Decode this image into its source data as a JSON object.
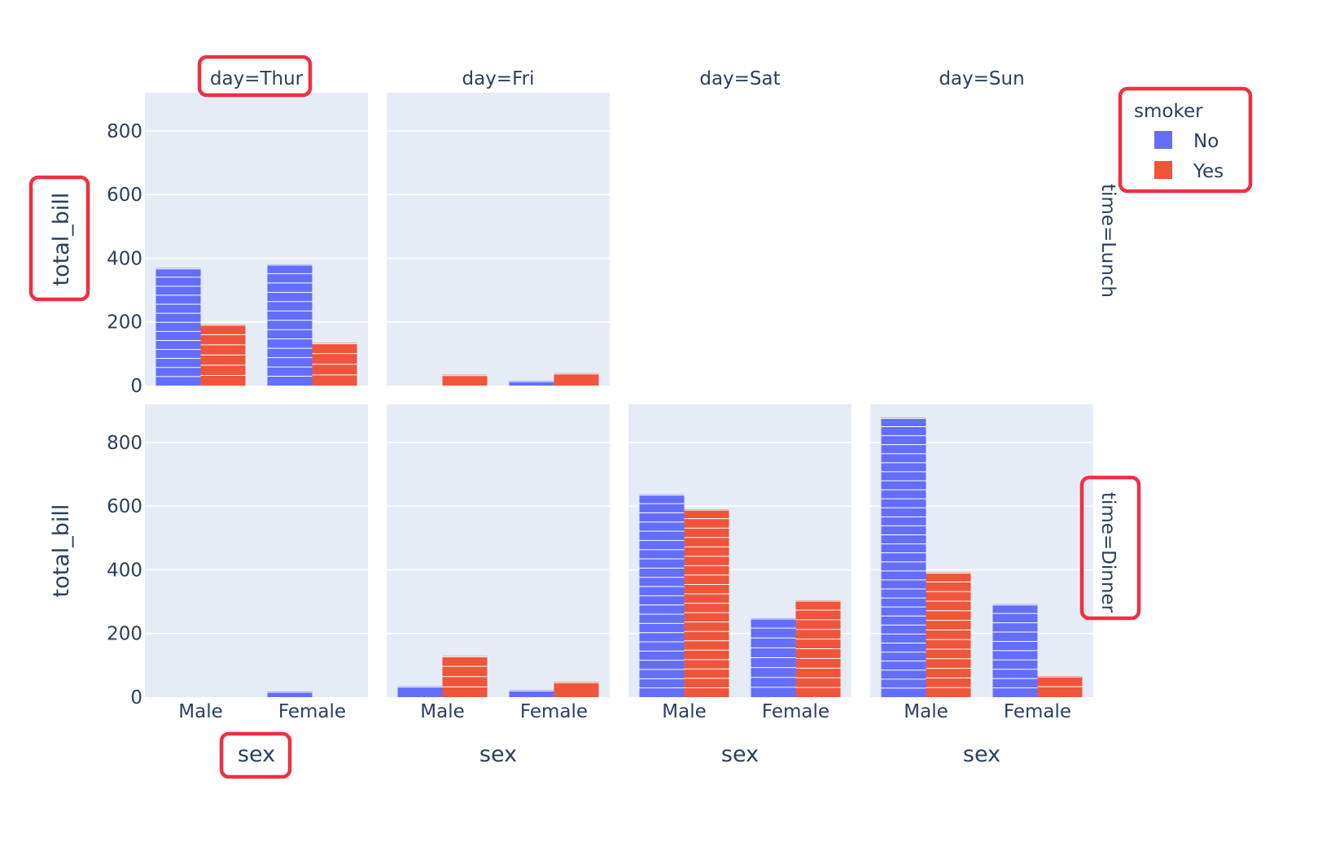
{
  "chart_data": {
    "type": "bar",
    "barmode": "group",
    "facet_col": {
      "name": "day",
      "labels": [
        "day=Thur",
        "day=Fri",
        "day=Sat",
        "day=Sun"
      ]
    },
    "facet_row": {
      "name": "time",
      "labels": [
        "time=Lunch",
        "time=Dinner"
      ]
    },
    "categories": [
      "Male",
      "Female"
    ],
    "xlabel": "sex",
    "ylabel": "total_bill",
    "ylim": [
      0,
      920
    ],
    "yticks": [
      0,
      200,
      400,
      600,
      800
    ],
    "grid": true,
    "legend": {
      "title": "smoker",
      "placement": "top-right",
      "items": [
        {
          "name": "No",
          "color": "#636efa"
        },
        {
          "name": "Yes",
          "color": "#ef553b"
        }
      ]
    },
    "series": [
      {
        "name": "No",
        "color": "#636efa"
      },
      {
        "name": "Yes",
        "color": "#ef553b"
      }
    ],
    "panels": [
      {
        "row": 0,
        "col": 0,
        "has_data": true,
        "values": {
          "No": [
            369,
            381
          ],
          "Yes": [
            192,
            134
          ]
        }
      },
      {
        "row": 0,
        "col": 1,
        "has_data": true,
        "values": {
          "No": [
            0,
            15
          ],
          "Yes": [
            34,
            39
          ]
        }
      },
      {
        "row": 0,
        "col": 2,
        "has_data": false,
        "values": {
          "No": [
            0,
            0
          ],
          "Yes": [
            0,
            0
          ]
        }
      },
      {
        "row": 0,
        "col": 3,
        "has_data": false,
        "values": {
          "No": [
            0,
            0
          ],
          "Yes": [
            0,
            0
          ]
        }
      },
      {
        "row": 1,
        "col": 0,
        "has_data": true,
        "values": {
          "No": [
            0,
            18
          ],
          "Yes": [
            0,
            0
          ]
        }
      },
      {
        "row": 1,
        "col": 1,
        "has_data": true,
        "values": {
          "No": [
            34,
            22
          ],
          "Yes": [
            129,
            48
          ]
        }
      },
      {
        "row": 1,
        "col": 2,
        "has_data": true,
        "values": {
          "No": [
            637,
            248
          ],
          "Yes": [
            590,
            304
          ]
        }
      },
      {
        "row": 1,
        "col": 3,
        "has_data": true,
        "values": {
          "No": [
            878,
            292
          ],
          "Yes": [
            392,
            66
          ]
        }
      }
    ]
  }
}
